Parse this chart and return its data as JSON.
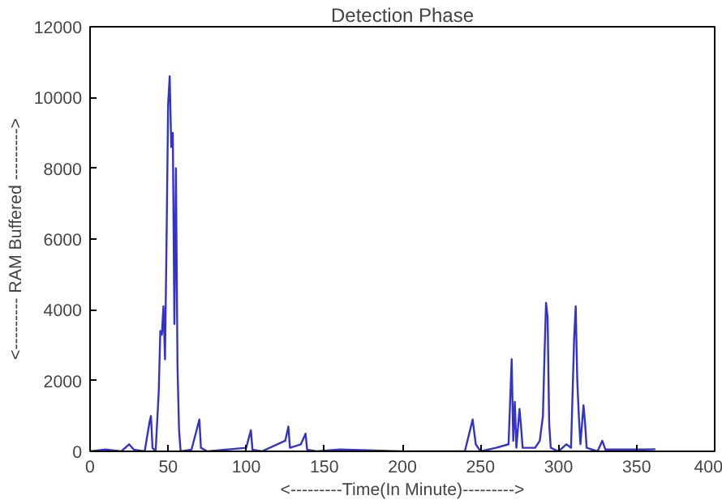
{
  "chart_data": {
    "type": "line",
    "title": "Detection Phase",
    "xlabel": "<---------Time(In Minute)--------->",
    "ylabel": "<--------- RAM Buffered --------->",
    "x": [
      0,
      10,
      20,
      25,
      28,
      35,
      38,
      39,
      40,
      42,
      44,
      45,
      46,
      47,
      48,
      49,
      50,
      51,
      52,
      53,
      54,
      55,
      56,
      57,
      58,
      65,
      70,
      71,
      75,
      100,
      103,
      104,
      110,
      125,
      127,
      128,
      135,
      138,
      139,
      145,
      160,
      200,
      240,
      245,
      247,
      250,
      260,
      268,
      270,
      271,
      272,
      273,
      275,
      276,
      277,
      285,
      288,
      290,
      291,
      292,
      293,
      294,
      295,
      300,
      305,
      308,
      310,
      311,
      312,
      313,
      314,
      316,
      317,
      318,
      325,
      328,
      330,
      345,
      355,
      362
    ],
    "series": [
      {
        "color": "#3333cc",
        "values": [
          0,
          50,
          0,
          200,
          50,
          0,
          800,
          1000,
          100,
          0,
          1700,
          3400,
          3300,
          4100,
          2600,
          6000,
          9800,
          10600,
          8600,
          9000,
          3600,
          8000,
          2400,
          600,
          0,
          50,
          900,
          100,
          0,
          100,
          600,
          50,
          0,
          300,
          700,
          100,
          200,
          500,
          50,
          0,
          50,
          0,
          0,
          900,
          200,
          0,
          100,
          200,
          2600,
          300,
          1400,
          100,
          1200,
          700,
          100,
          100,
          300,
          1000,
          2700,
          4200,
          3800,
          800,
          100,
          0,
          200,
          100,
          3200,
          4100,
          2000,
          1000,
          200,
          1300,
          800,
          100,
          0,
          300,
          50,
          50,
          50,
          60
        ]
      }
    ],
    "xlim": [
      0,
      400
    ],
    "ylim": [
      0,
      12000
    ],
    "xticks": [
      0,
      50,
      100,
      150,
      200,
      250,
      300,
      350,
      400
    ],
    "yticks": [
      0,
      2000,
      4000,
      6000,
      8000,
      10000,
      12000
    ],
    "grid": false,
    "marker": "none",
    "line_style": "solid"
  }
}
